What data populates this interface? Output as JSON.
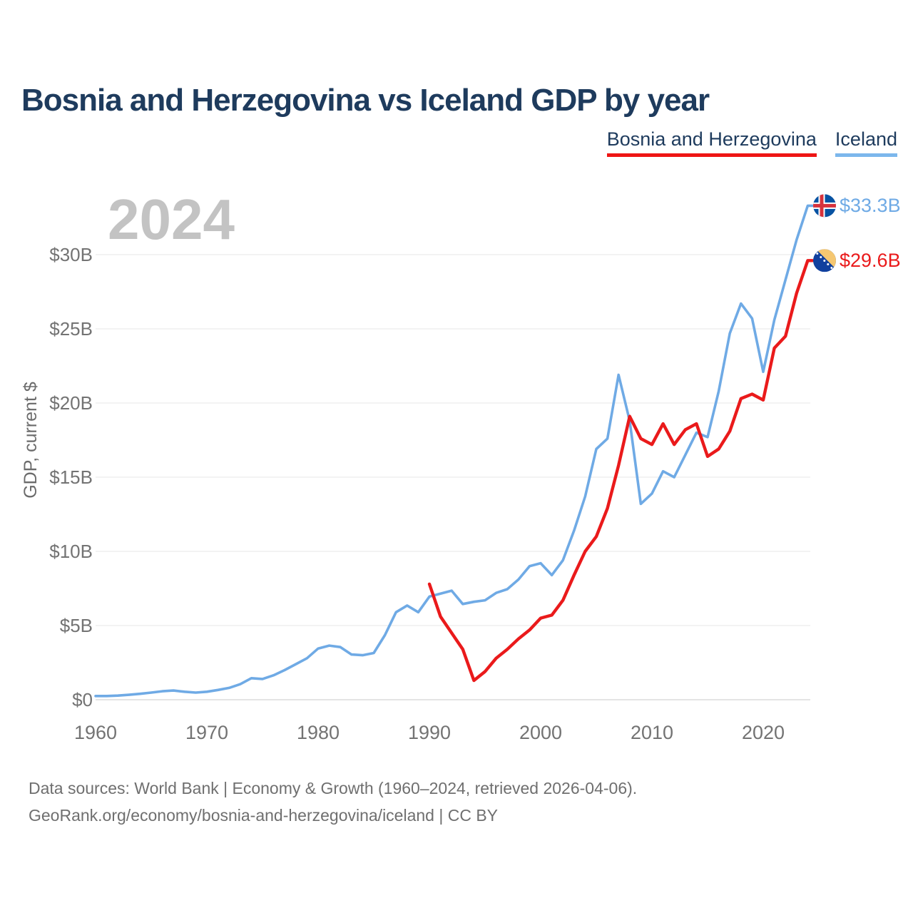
{
  "title": "Bosnia and Herzegovina vs Iceland GDP by year",
  "watermark_year": "2024",
  "legend": [
    {
      "label": "Bosnia and Herzegovina",
      "underline_color": "#ee1514"
    },
    {
      "label": "Iceland",
      "underline_color": "#7cb7ec"
    }
  ],
  "y_axis_title": "GDP, current $",
  "footer": {
    "line1": "Data sources: World Bank | Economy & Growth (1960–2024, retrieved 2026-04-06).",
    "line2": "GeoRank.org/economy/bosnia-and-herzegovina/iceland | CC BY"
  },
  "chart_data": {
    "type": "line",
    "title": "Bosnia and Herzegovina vs Iceland GDP by year",
    "xlabel": "",
    "ylabel": "GDP, current $",
    "unit": "billions of current US dollars",
    "xlim": [
      1960,
      2024
    ],
    "ylim": [
      0,
      35
    ],
    "grid": "horizontal-only",
    "legend_position": "top-right",
    "x_ticks": [
      "1960",
      "1970",
      "1980",
      "1990",
      "2000",
      "2010",
      "2020"
    ],
    "x_tick_years": [
      1960,
      1970,
      1980,
      1990,
      2000,
      2010,
      2020
    ],
    "y_ticks": [
      "$0",
      "$5B",
      "$10B",
      "$15B",
      "$20B",
      "$25B",
      "$30B"
    ],
    "y_tick_values": [
      0,
      5,
      10,
      15,
      20,
      25,
      30
    ],
    "series": [
      {
        "name": "Iceland",
        "color": "#6faae5",
        "start_year": 1960,
        "end_label": "$33.3B",
        "flag": "iceland-flag",
        "values": [
          0.25,
          0.25,
          0.28,
          0.33,
          0.4,
          0.48,
          0.57,
          0.62,
          0.54,
          0.48,
          0.54,
          0.66,
          0.8,
          1.05,
          1.45,
          1.4,
          1.65,
          2.0,
          2.4,
          2.8,
          3.45,
          3.65,
          3.55,
          3.05,
          3.0,
          3.15,
          4.35,
          5.9,
          6.35,
          5.9,
          6.95,
          7.15,
          7.35,
          6.45,
          6.6,
          6.7,
          7.2,
          7.45,
          8.1,
          9.0,
          9.2,
          8.4,
          9.4,
          11.4,
          13.7,
          16.9,
          17.6,
          21.9,
          18.8,
          13.2,
          13.9,
          15.4,
          15.0,
          16.5,
          18.0,
          17.7,
          20.8,
          24.7,
          26.7,
          25.7,
          22.1,
          25.6,
          28.3,
          31.0,
          33.3
        ]
      },
      {
        "name": "Bosnia and Herzegovina",
        "color": "#ea1a1b",
        "start_year": 1990,
        "end_label": "$29.6B",
        "flag": "bosnia-flag",
        "values": [
          7.8,
          5.6,
          4.5,
          3.4,
          1.3,
          1.9,
          2.8,
          3.4,
          4.1,
          4.7,
          5.5,
          5.7,
          6.7,
          8.4,
          10.0,
          11.0,
          12.9,
          15.8,
          19.1,
          17.6,
          17.2,
          18.6,
          17.2,
          18.2,
          18.6,
          16.4,
          16.9,
          18.1,
          20.3,
          20.6,
          20.2,
          23.7,
          24.5,
          27.4,
          29.6
        ]
      }
    ]
  }
}
